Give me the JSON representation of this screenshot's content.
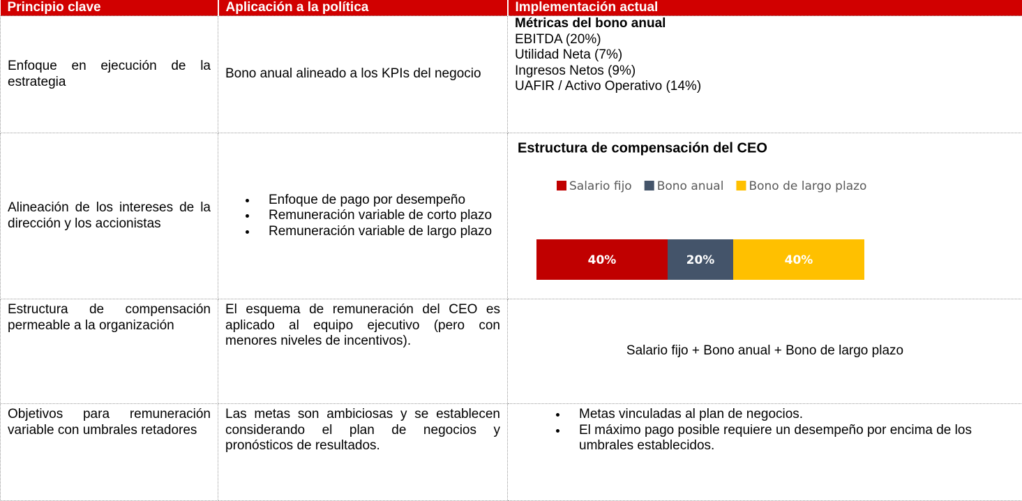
{
  "table": {
    "header": [
      "Principio clave",
      "Aplicación a la política",
      "Implementación actual"
    ],
    "rows": [
      {
        "principle": "Enfoque en ejecución de la estrategia",
        "policy": "Bono anual alineado a los KPIs del negocio",
        "current": {
          "heading": "Métricas del bono anual",
          "lines": [
            "EBITDA (20%)",
            "Utilidad Neta (7%)",
            "Ingresos Netos (9%)",
            "UAFIR / Activo Operativo (14%)"
          ]
        }
      },
      {
        "principle": "Alineación de los intereses de la dirección y los accionistas",
        "policy": {
          "bullets": [
            "Enfoque de pago por desempeño",
            "Remuneración variable de corto plazo",
            "Remuneración variable de largo plazo"
          ]
        }
      },
      {
        "principle": "Estructura de compensación permeable a la organización",
        "policy": "El esquema de remuneración del CEO es aplicado al equipo ejecutivo (pero con menores niveles de incentivos).",
        "current": "Salario fijo + Bono anual + Bono de largo plazo"
      },
      {
        "principle": "Objetivos para remuneración variable con umbrales retadores",
        "policy": "Las metas son ambiciosas y se establecen considerando el plan de negocios y pronósticos de resultados.",
        "current": {
          "bullets": [
            "Metas vinculadas al plan de negocios.",
            "El máximo pago posible requiere un desempeño por encima de los umbrales establecidos."
          ]
        }
      }
    ]
  },
  "chart_data": {
    "type": "stacked_bar",
    "orientation": "horizontal",
    "title": "Estructura de compensación del CEO",
    "categories": [
      null
    ],
    "series": [
      {
        "name": "Salario fijo",
        "color": "#c00000",
        "values": [
          40
        ],
        "value_labels": [
          "40%"
        ]
      },
      {
        "name": "Bono anual",
        "color": "#44546a",
        "values": [
          20
        ],
        "value_labels": [
          "20%"
        ]
      },
      {
        "name": "Bono de largo plazo",
        "color": "#ffc000",
        "values": [
          40
        ],
        "value_labels": [
          "40%"
        ]
      }
    ],
    "legend": "top"
  }
}
